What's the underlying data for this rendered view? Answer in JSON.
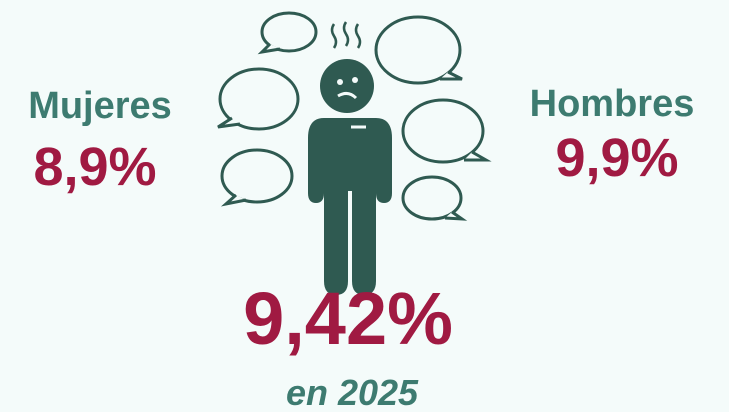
{
  "left": {
    "label": "Mujeres",
    "value": "8,9%"
  },
  "right": {
    "label": "Hombres",
    "value": "9,9%"
  },
  "total": {
    "value": "9,42%",
    "period": "en 2025"
  }
}
